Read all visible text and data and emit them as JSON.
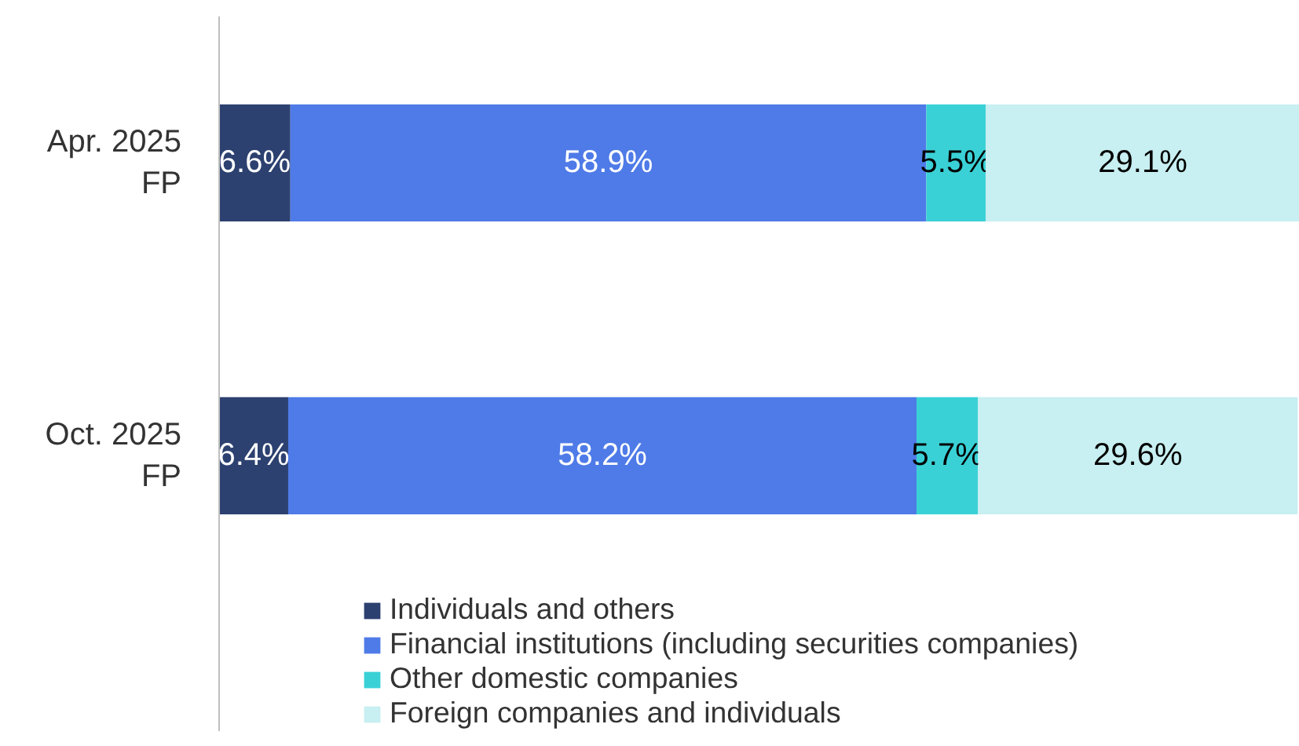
{
  "chart_data": {
    "type": "bar",
    "orientation": "horizontal",
    "stacked": true,
    "legend": "bottom",
    "categories": [
      "Apr. 2025\nFP",
      "Oct. 2025\nFP"
    ],
    "series": [
      {
        "name": "Individuals and others",
        "color": "#2c4170",
        "values": [
          6.6,
          6.4
        ],
        "value_labels": [
          "6.6%",
          "6.4%"
        ]
      },
      {
        "name": "Financial institutions (including securities companies)",
        "color": "#4f7be8",
        "values": [
          58.9,
          58.2
        ],
        "value_labels": [
          "58.9%",
          "58.2%"
        ]
      },
      {
        "name": "Other domestic companies",
        "color": "#3ad1d6",
        "values": [
          5.5,
          5.7
        ],
        "value_labels": [
          "5.5%",
          "5.7%"
        ]
      },
      {
        "name": "Foreign companies and individuals",
        "color": "#c8eff1",
        "values": [
          29.1,
          29.6
        ],
        "value_labels": [
          "29.1%",
          "29.6%"
        ]
      }
    ]
  }
}
